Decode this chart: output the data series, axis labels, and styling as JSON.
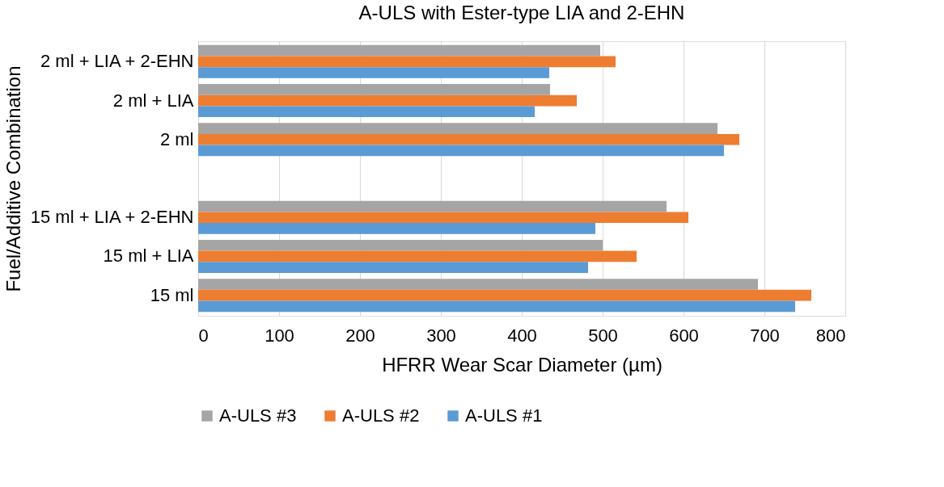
{
  "chart_data": {
    "type": "bar",
    "orientation": "horizontal",
    "title": "A-ULS with Ester-type LIA and 2-EHN",
    "xlabel": "HFRR Wear Scar Diameter (µm)",
    "ylabel": "Fuel/Additive Combination",
    "categories": [
      "2 ml + LIA + 2-EHN",
      "2 ml + LIA",
      "2 ml",
      null,
      "15 ml + LIA + 2-EHN",
      "15 ml + LIA",
      "15 ml"
    ],
    "series": [
      {
        "name": "A-ULS #3",
        "color": "#a5a5a5",
        "values": [
          497,
          435,
          642,
          null,
          579,
          500,
          692
        ]
      },
      {
        "name": "A-ULS #2",
        "color": "#ed7d31",
        "values": [
          516,
          468,
          669,
          null,
          606,
          542,
          758
        ]
      },
      {
        "name": "A-ULS #1",
        "color": "#5b9bd5",
        "values": [
          434,
          416,
          650,
          null,
          491,
          482,
          738
        ]
      }
    ],
    "xlim": [
      0,
      800
    ],
    "xticks": [
      0,
      100,
      200,
      300,
      400,
      500,
      600,
      700,
      800
    ],
    "grid": "x",
    "legend": "bottom"
  }
}
